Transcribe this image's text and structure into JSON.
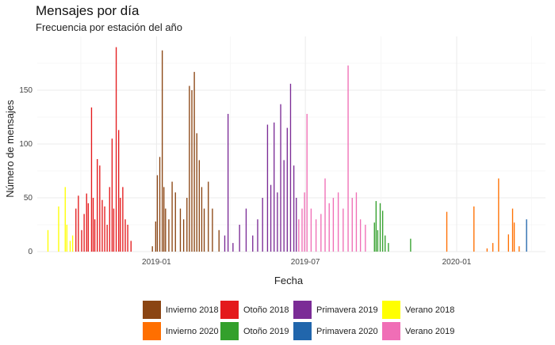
{
  "chart_data": {
    "type": "bar",
    "title": "Mensajes por día",
    "subtitle": "Frecuencia por estación del año",
    "xlabel": "Fecha",
    "ylabel": "Número de mensajes",
    "x_range": [
      "2018-08-09",
      "2020-04-18"
    ],
    "ylim": [
      0,
      200
    ],
    "x_ticks": [
      "2019-01-01",
      "2019-07-01",
      "2020-01-01"
    ],
    "x_tick_labels": [
      "2019-01",
      "2019-07",
      "2020-01"
    ],
    "y_ticks": [
      0,
      50,
      100,
      150
    ],
    "y_tick_labels": [
      "0",
      "50",
      "100",
      "150"
    ],
    "grid": true,
    "legend_position": "bottom",
    "legend": [
      {
        "key": "invierno2018",
        "label": "Invierno 2018",
        "color": "#8B4513"
      },
      {
        "key": "otono2018",
        "label": "Otoño 2018",
        "color": "#E41A1C"
      },
      {
        "key": "primavera2019",
        "label": "Primavera 2019",
        "color": "#7B2C96"
      },
      {
        "key": "verano2018",
        "label": "Verano 2018",
        "color": "#FFFF00"
      },
      {
        "key": "invierno2020",
        "label": "Invierno 2020",
        "color": "#FF6F00"
      },
      {
        "key": "otono2019",
        "label": "Otoño 2019",
        "color": "#33A02C"
      },
      {
        "key": "primavera2020",
        "label": "Primavera 2020",
        "color": "#2166AC"
      },
      {
        "key": "verano2019",
        "label": "Verano 2019",
        "color": "#F06EB6"
      }
    ],
    "series": [
      {
        "name": "Verano 2018",
        "key": "verano2018",
        "color": "#FFFF00",
        "points": [
          {
            "date": "2018-08-22",
            "value": 20
          },
          {
            "date": "2018-09-04",
            "value": 42
          },
          {
            "date": "2018-09-12",
            "value": 60
          },
          {
            "date": "2018-09-14",
            "value": 25
          },
          {
            "date": "2018-09-18",
            "value": 10
          },
          {
            "date": "2018-09-21",
            "value": 15
          }
        ]
      },
      {
        "name": "Otoño 2018",
        "key": "otono2018",
        "color": "#E41A1C",
        "points": [
          {
            "date": "2018-09-25",
            "value": 40
          },
          {
            "date": "2018-09-28",
            "value": 52
          },
          {
            "date": "2018-10-02",
            "value": 20
          },
          {
            "date": "2018-10-05",
            "value": 35
          },
          {
            "date": "2018-10-08",
            "value": 54
          },
          {
            "date": "2018-10-10",
            "value": 45
          },
          {
            "date": "2018-10-14",
            "value": 134
          },
          {
            "date": "2018-10-16",
            "value": 50
          },
          {
            "date": "2018-10-18",
            "value": 30
          },
          {
            "date": "2018-10-21",
            "value": 86
          },
          {
            "date": "2018-10-24",
            "value": 80
          },
          {
            "date": "2018-10-27",
            "value": 48
          },
          {
            "date": "2018-10-30",
            "value": 42
          },
          {
            "date": "2018-11-02",
            "value": 25
          },
          {
            "date": "2018-11-05",
            "value": 60
          },
          {
            "date": "2018-11-08",
            "value": 105
          },
          {
            "date": "2018-11-10",
            "value": 40
          },
          {
            "date": "2018-11-13",
            "value": 190
          },
          {
            "date": "2018-11-16",
            "value": 113
          },
          {
            "date": "2018-11-18",
            "value": 50
          },
          {
            "date": "2018-11-21",
            "value": 60
          },
          {
            "date": "2018-11-24",
            "value": 30
          },
          {
            "date": "2018-11-27",
            "value": 25
          },
          {
            "date": "2018-12-01",
            "value": 10
          }
        ]
      },
      {
        "name": "Invierno 2018",
        "key": "invierno2018",
        "color": "#8B4513",
        "points": [
          {
            "date": "2018-12-27",
            "value": 5
          },
          {
            "date": "2018-12-31",
            "value": 28
          },
          {
            "date": "2019-01-02",
            "value": 71
          },
          {
            "date": "2019-01-05",
            "value": 88
          },
          {
            "date": "2019-01-08",
            "value": 187
          },
          {
            "date": "2019-01-10",
            "value": 60
          },
          {
            "date": "2019-01-12",
            "value": 40
          },
          {
            "date": "2019-01-16",
            "value": 30
          },
          {
            "date": "2019-01-20",
            "value": 65
          },
          {
            "date": "2019-01-24",
            "value": 55
          },
          {
            "date": "2019-01-30",
            "value": 40
          },
          {
            "date": "2019-02-03",
            "value": 30
          },
          {
            "date": "2019-02-07",
            "value": 50
          },
          {
            "date": "2019-02-10",
            "value": 154
          },
          {
            "date": "2019-02-13",
            "value": 150
          },
          {
            "date": "2019-02-16",
            "value": 167
          },
          {
            "date": "2019-02-19",
            "value": 110
          },
          {
            "date": "2019-02-22",
            "value": 85
          },
          {
            "date": "2019-02-25",
            "value": 60
          },
          {
            "date": "2019-02-28",
            "value": 40
          },
          {
            "date": "2019-03-05",
            "value": 65
          },
          {
            "date": "2019-03-10",
            "value": 40
          },
          {
            "date": "2019-03-18",
            "value": 20
          }
        ]
      },
      {
        "name": "Primavera 2019",
        "key": "primavera2019",
        "color": "#7B2C96",
        "points": [
          {
            "date": "2019-03-25",
            "value": 15
          },
          {
            "date": "2019-03-29",
            "value": 128
          },
          {
            "date": "2019-04-04",
            "value": 8
          },
          {
            "date": "2019-04-12",
            "value": 25
          },
          {
            "date": "2019-04-20",
            "value": 40
          },
          {
            "date": "2019-04-28",
            "value": 15
          },
          {
            "date": "2019-05-04",
            "value": 30
          },
          {
            "date": "2019-05-10",
            "value": 50
          },
          {
            "date": "2019-05-16",
            "value": 118
          },
          {
            "date": "2019-05-20",
            "value": 62
          },
          {
            "date": "2019-05-24",
            "value": 120
          },
          {
            "date": "2019-05-28",
            "value": 55
          },
          {
            "date": "2019-06-01",
            "value": 137
          },
          {
            "date": "2019-06-05",
            "value": 85
          },
          {
            "date": "2019-06-09",
            "value": 115
          },
          {
            "date": "2019-06-13",
            "value": 156
          },
          {
            "date": "2019-06-17",
            "value": 80
          },
          {
            "date": "2019-06-20",
            "value": 50
          }
        ]
      },
      {
        "name": "Verano 2019",
        "key": "verano2019",
        "color": "#F06EB6",
        "points": [
          {
            "date": "2019-06-23",
            "value": 30
          },
          {
            "date": "2019-06-27",
            "value": 40
          },
          {
            "date": "2019-06-30",
            "value": 55
          },
          {
            "date": "2019-07-03",
            "value": 128
          },
          {
            "date": "2019-07-08",
            "value": 40
          },
          {
            "date": "2019-07-14",
            "value": 30
          },
          {
            "date": "2019-07-20",
            "value": 35
          },
          {
            "date": "2019-07-25",
            "value": 68
          },
          {
            "date": "2019-07-30",
            "value": 45
          },
          {
            "date": "2019-08-04",
            "value": 50
          },
          {
            "date": "2019-08-10",
            "value": 55
          },
          {
            "date": "2019-08-16",
            "value": 40
          },
          {
            "date": "2019-08-22",
            "value": 173
          },
          {
            "date": "2019-08-27",
            "value": 50
          },
          {
            "date": "2019-09-01",
            "value": 55
          },
          {
            "date": "2019-09-06",
            "value": 30
          },
          {
            "date": "2019-09-12",
            "value": 25
          }
        ]
      },
      {
        "name": "Otoño 2019",
        "key": "otono2019",
        "color": "#33A02C",
        "points": [
          {
            "date": "2019-09-23",
            "value": 27
          },
          {
            "date": "2019-09-25",
            "value": 47
          },
          {
            "date": "2019-09-27",
            "value": 20
          },
          {
            "date": "2019-09-30",
            "value": 45
          },
          {
            "date": "2019-10-03",
            "value": 38
          },
          {
            "date": "2019-10-06",
            "value": 15
          },
          {
            "date": "2019-10-10",
            "value": 8
          },
          {
            "date": "2019-11-06",
            "value": 12
          }
        ]
      },
      {
        "name": "Invierno 2020",
        "key": "invierno2020",
        "color": "#FF6F00",
        "points": [
          {
            "date": "2019-12-20",
            "value": 37
          },
          {
            "date": "2020-01-22",
            "value": 42
          },
          {
            "date": "2020-02-07",
            "value": 3
          },
          {
            "date": "2020-02-14",
            "value": 8
          },
          {
            "date": "2020-02-21",
            "value": 68
          },
          {
            "date": "2020-03-04",
            "value": 16
          },
          {
            "date": "2020-03-09",
            "value": 40
          },
          {
            "date": "2020-03-11",
            "value": 27
          },
          {
            "date": "2020-03-17",
            "value": 5
          }
        ]
      },
      {
        "name": "Primavera 2020",
        "key": "primavera2020",
        "color": "#2166AC",
        "points": [
          {
            "date": "2020-03-26",
            "value": 30
          }
        ]
      }
    ]
  }
}
